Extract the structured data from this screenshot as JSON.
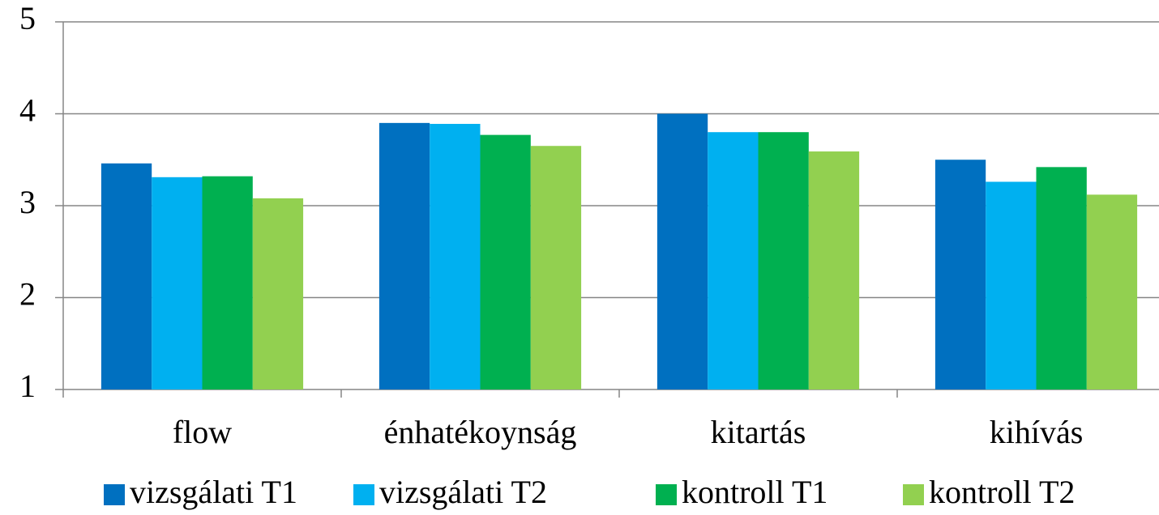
{
  "chart_data": {
    "type": "bar",
    "categories": [
      "flow",
      "énhatékoynság",
      "kitartás",
      "kihívás"
    ],
    "series": [
      {
        "name": "vizsgálati T1",
        "color": "#0070c0",
        "values": [
          3.46,
          3.9,
          4.0,
          3.5
        ]
      },
      {
        "name": "vizsgálati T2",
        "color": "#00b0f0",
        "values": [
          3.31,
          3.89,
          3.8,
          3.26
        ]
      },
      {
        "name": "kontroll T1",
        "color": "#00b050",
        "values": [
          3.32,
          3.77,
          3.8,
          3.42
        ]
      },
      {
        "name": "kontroll T2",
        "color": "#92d050",
        "values": [
          3.08,
          3.65,
          3.59,
          3.12
        ]
      }
    ],
    "ylim": [
      1,
      5
    ],
    "yticks": [
      1,
      2,
      3,
      4,
      5
    ],
    "grid": true,
    "legend": "bottom"
  }
}
